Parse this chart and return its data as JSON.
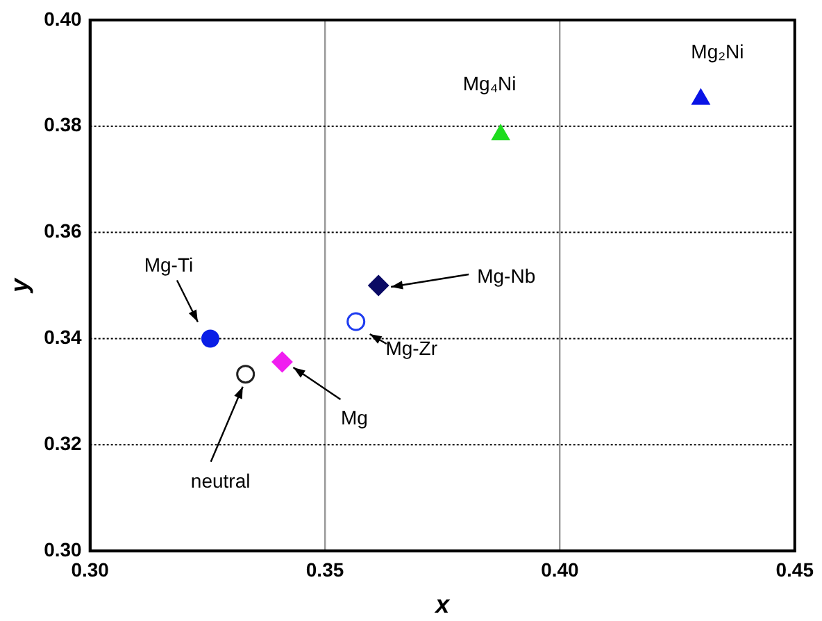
{
  "chart_data": {
    "type": "scatter",
    "xlabel": "x",
    "ylabel": "y",
    "xlim": [
      0.3,
      0.45
    ],
    "ylim": [
      0.3,
      0.4
    ],
    "xticks": [
      {
        "value": 0.3,
        "label": "0.30"
      },
      {
        "value": 0.35,
        "label": "0.35"
      },
      {
        "value": 0.4,
        "label": "0.40"
      },
      {
        "value": 0.45,
        "label": "0.45"
      }
    ],
    "yticks": [
      {
        "value": 0.3,
        "label": "0.30"
      },
      {
        "value": 0.32,
        "label": "0.32"
      },
      {
        "value": 0.34,
        "label": "0.34"
      },
      {
        "value": 0.36,
        "label": "0.36"
      },
      {
        "value": 0.38,
        "label": "0.38"
      },
      {
        "value": 0.4,
        "label": "0.40"
      }
    ],
    "grid": true,
    "legend": false,
    "series": [
      {
        "name": "Mg-Ti",
        "color": "#0a1ee6",
        "marker": "circle",
        "x": [
          0.3256
        ],
        "values": [
          0.34
        ]
      },
      {
        "name": "neutral",
        "color": "#202020",
        "marker": "circle",
        "x": [
          0.3331
        ],
        "values": [
          0.3333
        ]
      },
      {
        "name": "Mg",
        "color": "#f01ef0",
        "marker": "diamond",
        "x": [
          0.3409
        ],
        "values": [
          0.3356
        ]
      },
      {
        "name": "Mg-Zr",
        "color": "#1e3cf0",
        "marker": "circle",
        "x": [
          0.3566
        ],
        "values": [
          0.3432
        ]
      },
      {
        "name": "Mg-Nb",
        "color": "#0a0a64",
        "marker": "diamond",
        "x": [
          0.3614
        ],
        "values": [
          0.35
        ]
      },
      {
        "name": "Mg₄Ni",
        "color": "#1edc1e",
        "marker": "triangle",
        "x": [
          0.3874
        ],
        "values": [
          0.3784
        ]
      },
      {
        "name": "Mg₂Ni",
        "color": "#0a14e6",
        "marker": "triangle",
        "x": [
          0.43
        ],
        "values": [
          0.3851
        ]
      }
    ]
  }
}
